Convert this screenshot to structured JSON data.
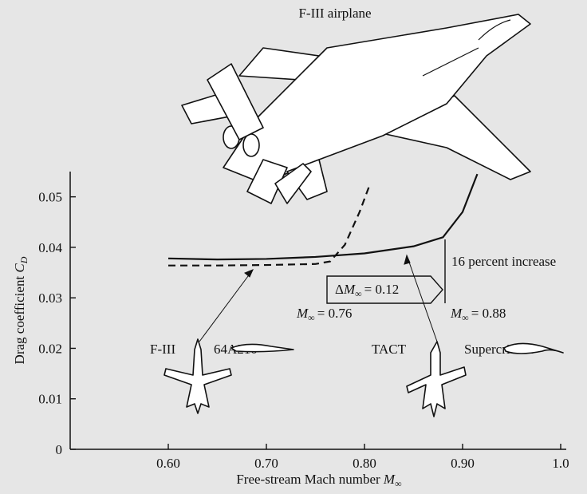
{
  "chart_data": {
    "type": "line",
    "title": "F-III airplane",
    "x_label": {
      "text": "Free-stream Mach number",
      "symbol": "M",
      "subscript": "∞"
    },
    "y_label": {
      "text": "Drag coefficient",
      "symbol": "C",
      "subscript": "D"
    },
    "xlim": [
      0.5,
      1.0
    ],
    "ylim": [
      0,
      0.055
    ],
    "xticks": [
      {
        "value": 0.6,
        "label": "0.60"
      },
      {
        "value": 0.7,
        "label": "0.70"
      },
      {
        "value": 0.8,
        "label": "0.80"
      },
      {
        "value": 0.9,
        "label": "0.90"
      },
      {
        "value": 1.0,
        "label": "1.0"
      }
    ],
    "yticks": [
      0,
      0.01,
      0.02,
      0.03,
      0.04,
      0.05
    ],
    "series": [
      {
        "color": "#111111",
        "style": "solid",
        "x": [
          0.6,
          0.65,
          0.7,
          0.75,
          0.8,
          0.85,
          0.88,
          0.9,
          0.915
        ],
        "values": [
          0.0378,
          0.0376,
          0.0377,
          0.0381,
          0.0388,
          0.0402,
          0.042,
          0.047,
          0.0545
        ]
      },
      {
        "color": "#111111",
        "style": "dashed",
        "x": [
          0.6,
          0.65,
          0.7,
          0.75,
          0.765,
          0.78,
          0.795,
          0.805
        ],
        "values": [
          0.0364,
          0.0364,
          0.0365,
          0.0367,
          0.0372,
          0.0405,
          0.047,
          0.0522
        ]
      }
    ],
    "annotations": {
      "increase": "16 percent increase",
      "delta": {
        "prefix": "Δ",
        "symbol": "M",
        "subscript": "∞",
        "text": "= 0.12"
      },
      "mach_a": {
        "symbol": "M",
        "subscript": "∞",
        "text": "= 0.76"
      },
      "mach_b": {
        "symbol": "M",
        "subscript": "∞",
        "text": "= 0.88"
      },
      "plane_a": "F-III",
      "airfoil_a": "64A210",
      "plane_b": "TACT",
      "airfoil_b": "Supercritical"
    }
  }
}
